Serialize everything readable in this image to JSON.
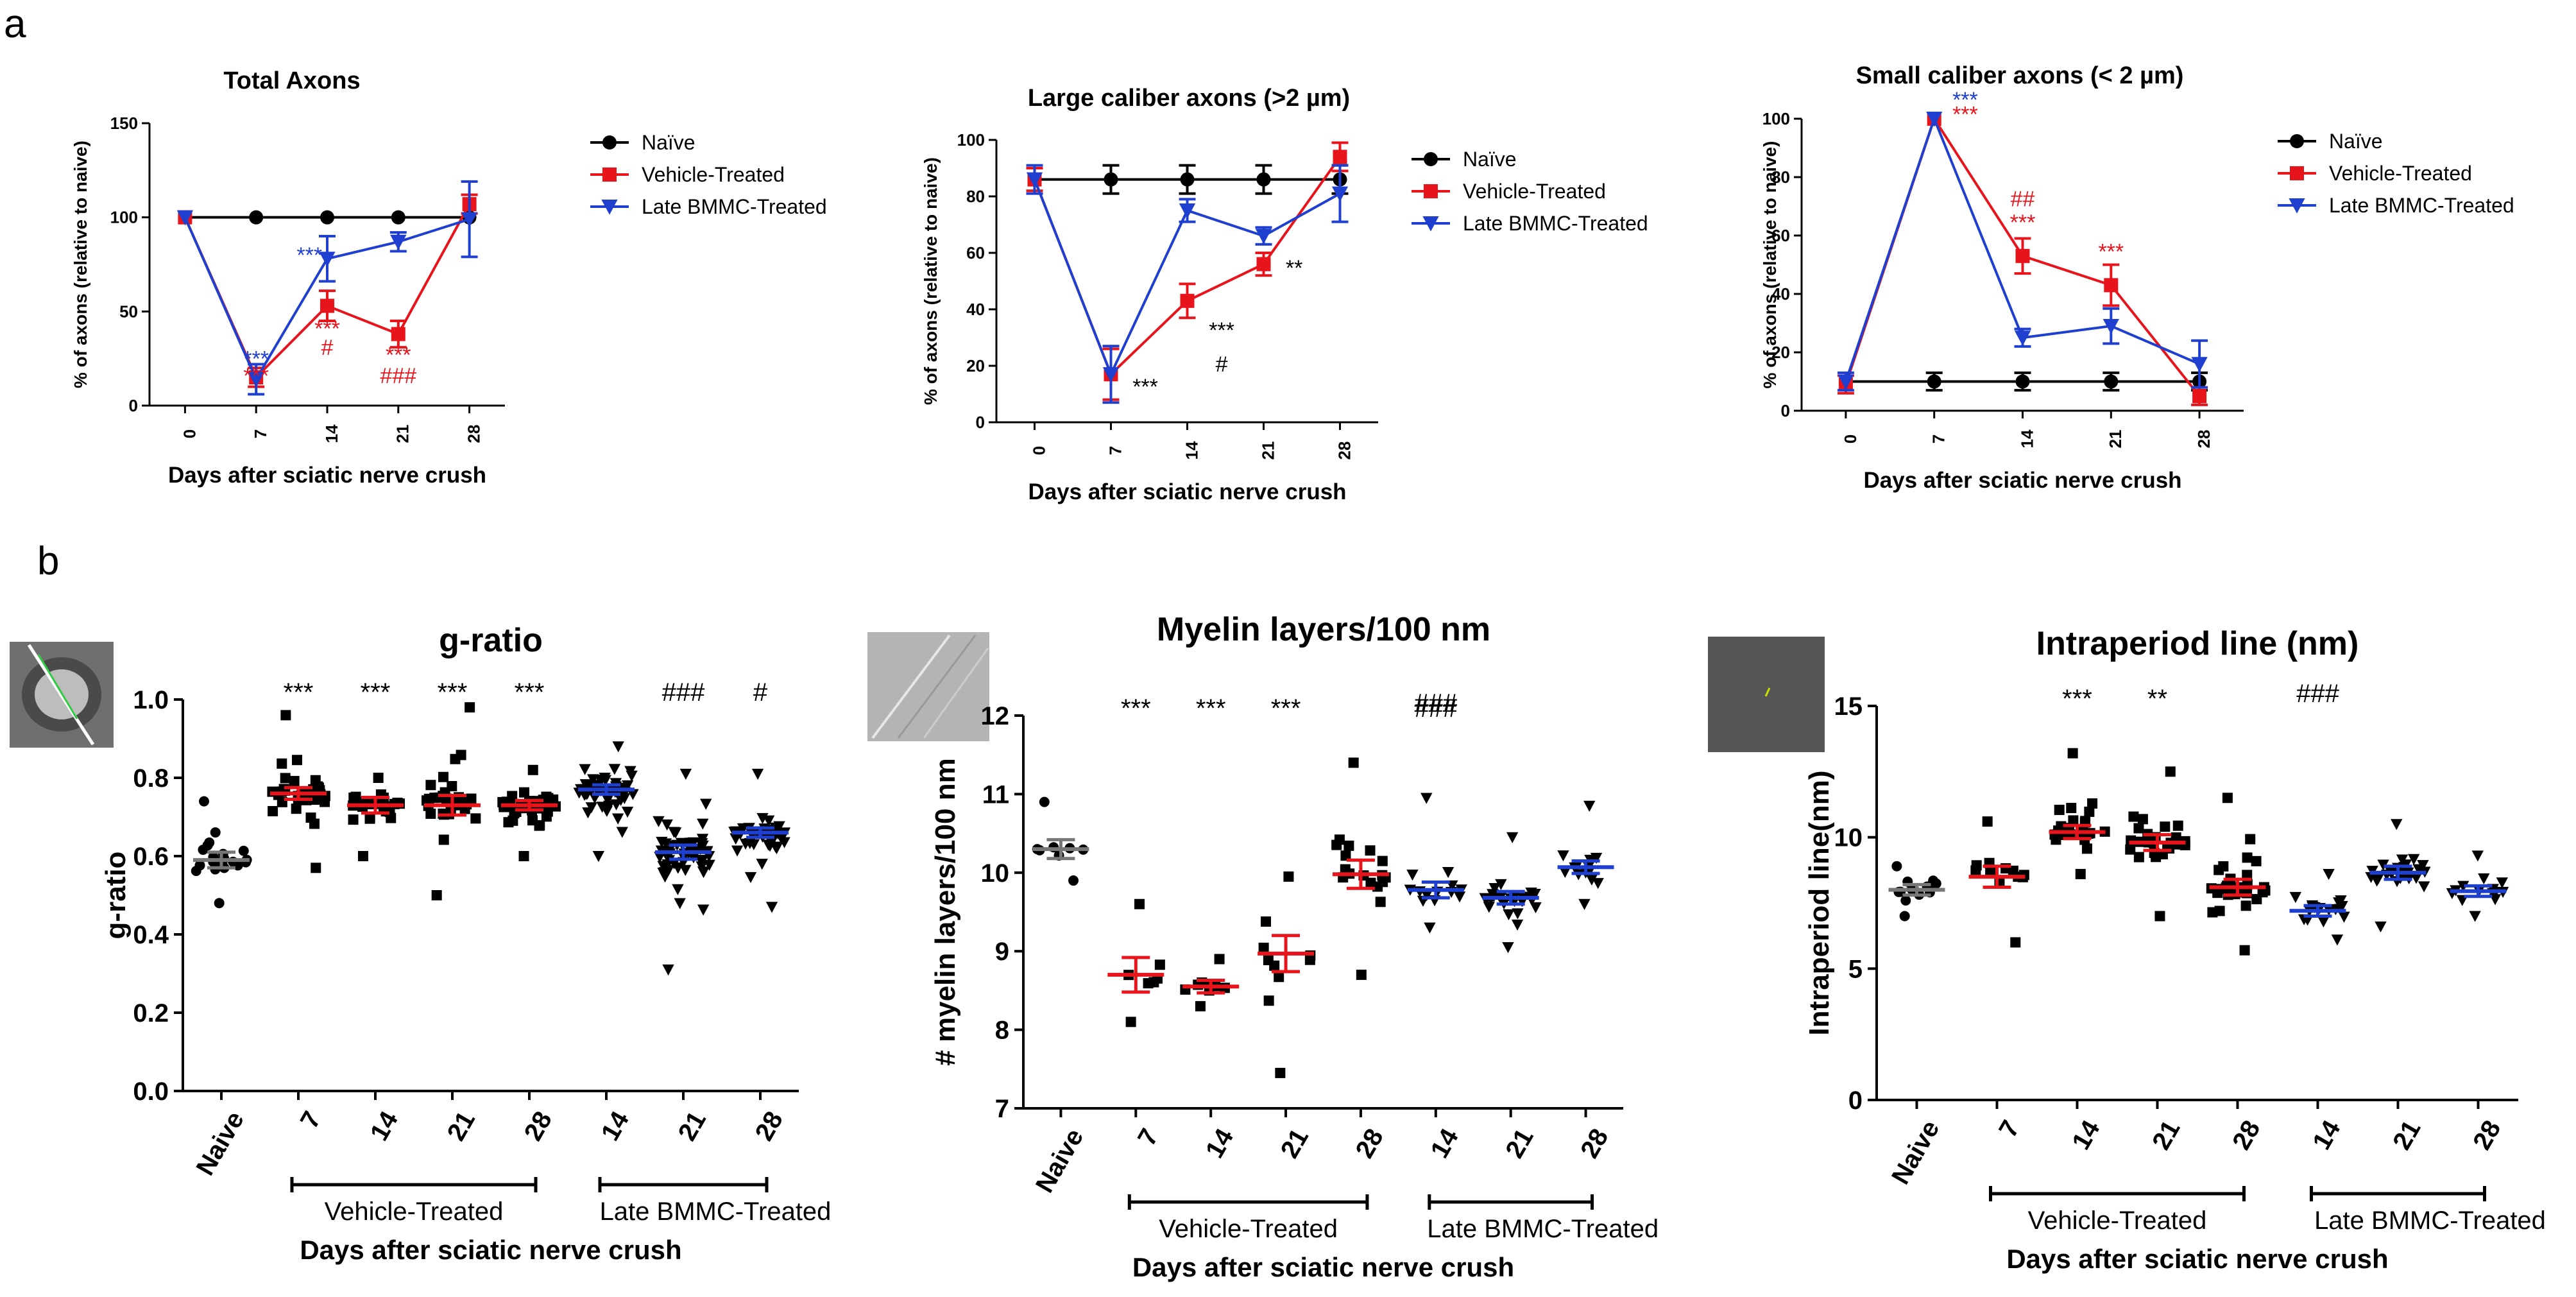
{
  "panel_labels": {
    "a": "a",
    "b": "b"
  },
  "chart_data": [
    {
      "type": "line",
      "title": "Total Axons",
      "xlabel": "Days after sciatic nerve crush",
      "ylabel": "% of axons (relative to naive)",
      "x": [
        "0",
        "7",
        "14",
        "21",
        "28"
      ],
      "ylim": [
        0,
        150
      ],
      "yticks": [
        0,
        50,
        100,
        150
      ],
      "series": [
        {
          "name": "Naïve",
          "color": "#000000",
          "marker": "circle",
          "values": [
            100,
            100,
            100,
            100,
            100
          ],
          "errors": [
            0,
            0,
            0,
            0,
            0
          ]
        },
        {
          "name": "Vehicle-Treated",
          "color": "#e8141b",
          "marker": "square",
          "values": [
            100,
            15,
            53,
            38,
            107
          ],
          "errors": [
            0,
            5,
            8,
            7,
            5
          ]
        },
        {
          "name": "Late BMMC-Treated",
          "color": "#1f3fcf",
          "marker": "triangle-down",
          "values": [
            100,
            14,
            78,
            87,
            99
          ],
          "errors": [
            0,
            8,
            12,
            5,
            20
          ]
        }
      ],
      "annotations": [
        {
          "text": "***",
          "color": "#1f3fcf",
          "x": 1,
          "y": 21
        },
        {
          "text": "***",
          "color": "#e8141b",
          "x": 1,
          "y": 12
        },
        {
          "text": "***",
          "color": "#1f3fcf",
          "x": 1.75,
          "y": 76
        },
        {
          "text": "***",
          "color": "#e8141b",
          "x": 2,
          "y": 37
        },
        {
          "text": "#",
          "color": "#e8141b",
          "x": 2,
          "y": 27
        },
        {
          "text": "***",
          "color": "#e8141b",
          "x": 3,
          "y": 23
        },
        {
          "text": "###",
          "color": "#e8141b",
          "x": 3,
          "y": 12
        }
      ]
    },
    {
      "type": "line",
      "title": "Large caliber axons (>2 µm)",
      "xlabel": "Days after sciatic nerve crush",
      "ylabel": "% of axons (relative to naive)",
      "x": [
        "0",
        "7",
        "14",
        "21",
        "28"
      ],
      "ylim": [
        0,
        100
      ],
      "yticks": [
        0,
        20,
        40,
        60,
        80,
        100
      ],
      "series": [
        {
          "name": "Naïve",
          "color": "#000000",
          "marker": "circle",
          "values": [
            86,
            86,
            86,
            86,
            86
          ],
          "errors": [
            0,
            5,
            5,
            5,
            5
          ]
        },
        {
          "name": "Vehicle-Treated",
          "color": "#e8141b",
          "marker": "square",
          "values": [
            86,
            17,
            43,
            56,
            94
          ],
          "errors": [
            4,
            9,
            6,
            4,
            5
          ]
        },
        {
          "name": "Late BMMC-Treated",
          "color": "#1f3fcf",
          "marker": "triangle-down",
          "values": [
            86,
            17,
            75,
            66,
            81
          ],
          "errors": [
            5,
            10,
            4,
            3,
            10
          ]
        }
      ],
      "annotations": [
        {
          "text": "***",
          "color": "#000000",
          "x": 1.45,
          "y": 10
        },
        {
          "text": "***",
          "color": "#000000",
          "x": 2.45,
          "y": 30
        },
        {
          "text": "#",
          "color": "#000000",
          "x": 2.45,
          "y": 18
        },
        {
          "text": "**",
          "color": "#000000",
          "x": 3.4,
          "y": 52
        }
      ]
    },
    {
      "type": "line",
      "title": "Small caliber axons (< 2 µm)",
      "xlabel": "Days after sciatic nerve crush",
      "ylabel": "% of axons (relative to naive)",
      "x": [
        "0",
        "7",
        "14",
        "21",
        "28"
      ],
      "ylim": [
        0,
        100
      ],
      "yticks": [
        0,
        20,
        40,
        60,
        80,
        100
      ],
      "series": [
        {
          "name": "Naïve",
          "color": "#000000",
          "marker": "circle",
          "values": [
            10,
            10,
            10,
            10,
            10
          ],
          "errors": [
            0,
            3,
            3,
            3,
            3
          ]
        },
        {
          "name": "Vehicle-Treated",
          "color": "#e8141b",
          "marker": "square",
          "values": [
            9,
            100,
            53,
            43,
            5
          ],
          "errors": [
            3,
            0,
            6,
            7,
            3
          ]
        },
        {
          "name": "Late BMMC-Treated",
          "color": "#1f3fcf",
          "marker": "triangle-down",
          "values": [
            10,
            100,
            25,
            29,
            16
          ],
          "errors": [
            3,
            0,
            3,
            6,
            8
          ]
        }
      ],
      "annotations": [
        {
          "text": "***",
          "color": "#1f3fcf",
          "x": 1.35,
          "y": 104
        },
        {
          "text": "***",
          "color": "#e8141b",
          "x": 1.35,
          "y": 99
        },
        {
          "text": "##",
          "color": "#e8141b",
          "x": 2,
          "y": 70
        },
        {
          "text": "***",
          "color": "#e8141b",
          "x": 2,
          "y": 62
        },
        {
          "text": "***",
          "color": "#e8141b",
          "x": 3,
          "y": 52
        }
      ]
    },
    {
      "type": "scatter",
      "title": "g-ratio",
      "xlabel": "Days after sciatic nerve crush",
      "ylabel": "g-ratio",
      "categories": [
        "Naive",
        "7",
        "14",
        "21",
        "28",
        "14",
        "21",
        "28"
      ],
      "groups": [
        {
          "label": "Vehicle-Treated",
          "from": 1,
          "to": 4
        },
        {
          "label": "Late BMMC-Treated",
          "from": 5,
          "to": 7
        }
      ],
      "ylim": [
        0,
        1
      ],
      "yticks": [
        "0.0",
        "0.2",
        "0.4",
        "0.6",
        "0.8",
        "1.0"
      ],
      "markers": [
        "circle",
        "square",
        "square",
        "square",
        "square",
        "triangle-down",
        "triangle-down",
        "triangle-down"
      ],
      "means": [
        0.59,
        0.76,
        0.73,
        0.73,
        0.73,
        0.77,
        0.61,
        0.66
      ],
      "sems": [
        0.02,
        0.015,
        0.02,
        0.025,
        0.012,
        0.012,
        0.018,
        0.012
      ],
      "mean_colors": [
        "#777777",
        "#e8141b",
        "#e8141b",
        "#e8141b",
        "#e8141b",
        "#1f3fcf",
        "#1f3fcf",
        "#1f3fcf"
      ],
      "point_counts": [
        22,
        40,
        24,
        30,
        45,
        60,
        60,
        45
      ],
      "ranges": [
        [
          0.48,
          0.74
        ],
        [
          0.57,
          0.96
        ],
        [
          0.6,
          0.8
        ],
        [
          0.5,
          0.98
        ],
        [
          0.6,
          0.82
        ],
        [
          0.6,
          0.88
        ],
        [
          0.31,
          0.81
        ],
        [
          0.47,
          0.81
        ]
      ],
      "annotations": [
        "",
        "***",
        "***",
        "***",
        "***",
        "",
        "###",
        "#"
      ]
    },
    {
      "type": "scatter",
      "title": "Myelin layers/100 nm",
      "xlabel": "Days after sciatic nerve crush",
      "ylabel": "# myelin layers/100 nm",
      "categories": [
        "Naive",
        "7",
        "14",
        "21",
        "28",
        "14",
        "21",
        "28"
      ],
      "groups": [
        {
          "label": "Vehicle-Treated",
          "from": 1,
          "to": 4
        },
        {
          "label": "Late BMMC-Treated",
          "from": 5,
          "to": 7
        }
      ],
      "ylim": [
        7,
        12
      ],
      "yticks": [
        "7",
        "8",
        "9",
        "10",
        "11",
        "12"
      ],
      "markers": [
        "circle",
        "square",
        "square",
        "square",
        "square",
        "triangle-down",
        "triangle-down",
        "triangle-down"
      ],
      "means": [
        10.3,
        8.7,
        8.55,
        8.97,
        9.98,
        9.78,
        9.68,
        10.07
      ],
      "sems": [
        0.12,
        0.22,
        0.08,
        0.23,
        0.18,
        0.1,
        0.08,
        0.08
      ],
      "mean_colors": [
        "#777777",
        "#e8141b",
        "#e8141b",
        "#e8141b",
        "#e8141b",
        "#1f3fcf",
        "#1f3fcf",
        "#1f3fcf"
      ],
      "point_counts": [
        8,
        7,
        10,
        10,
        18,
        14,
        28,
        16
      ],
      "ranges": [
        [
          9.9,
          10.9
        ],
        [
          8.1,
          9.6
        ],
        [
          8.3,
          8.9
        ],
        [
          7.45,
          9.95
        ],
        [
          8.7,
          11.4
        ],
        [
          9.3,
          10.95
        ],
        [
          9.05,
          10.45
        ],
        [
          9.6,
          10.85
        ]
      ],
      "annotations": [
        "",
        "***",
        "***",
        "***",
        "",
        "###",
        "",
        ""
      ],
      "annotation_group": {
        "text": "###",
        "at": 5
      }
    },
    {
      "type": "scatter",
      "title": "Intraperiod line (nm)",
      "xlabel": "Days after sciatic nerve crush",
      "ylabel": "Intraperiod line(nm)",
      "categories": [
        "Naive",
        "7",
        "14",
        "21",
        "28",
        "14",
        "21",
        "28"
      ],
      "groups": [
        {
          "label": "Vehicle-Treated",
          "from": 1,
          "to": 4
        },
        {
          "label": "Late BMMC-Treated",
          "from": 5,
          "to": 7
        }
      ],
      "ylim": [
        0,
        15
      ],
      "yticks": [
        "0",
        "5",
        "10",
        "15"
      ],
      "markers": [
        "circle",
        "square",
        "square",
        "square",
        "square",
        "triangle-down",
        "triangle-down",
        "triangle-down"
      ],
      "means": [
        8.0,
        8.5,
        10.2,
        9.8,
        8.1,
        7.2,
        8.65,
        7.95
      ],
      "sems": [
        0.2,
        0.4,
        0.25,
        0.3,
        0.3,
        0.2,
        0.25,
        0.2
      ],
      "mean_colors": [
        "#777777",
        "#e8141b",
        "#e8141b",
        "#e8141b",
        "#e8141b",
        "#1f3fcf",
        "#1f3fcf",
        "#1f3fcf"
      ],
      "point_counts": [
        14,
        12,
        25,
        28,
        30,
        18,
        26,
        14
      ],
      "ranges": [
        [
          7.0,
          8.9
        ],
        [
          6.0,
          10.6
        ],
        [
          8.6,
          13.2
        ],
        [
          7.0,
          12.5
        ],
        [
          5.7,
          11.5
        ],
        [
          6.1,
          8.6
        ],
        [
          6.6,
          10.5
        ],
        [
          7.0,
          9.3
        ]
      ],
      "annotations": [
        "",
        "",
        "***",
        "**",
        "",
        "",
        "",
        ""
      ],
      "annotation_group": {
        "text": "###",
        "at": 5
      }
    }
  ]
}
